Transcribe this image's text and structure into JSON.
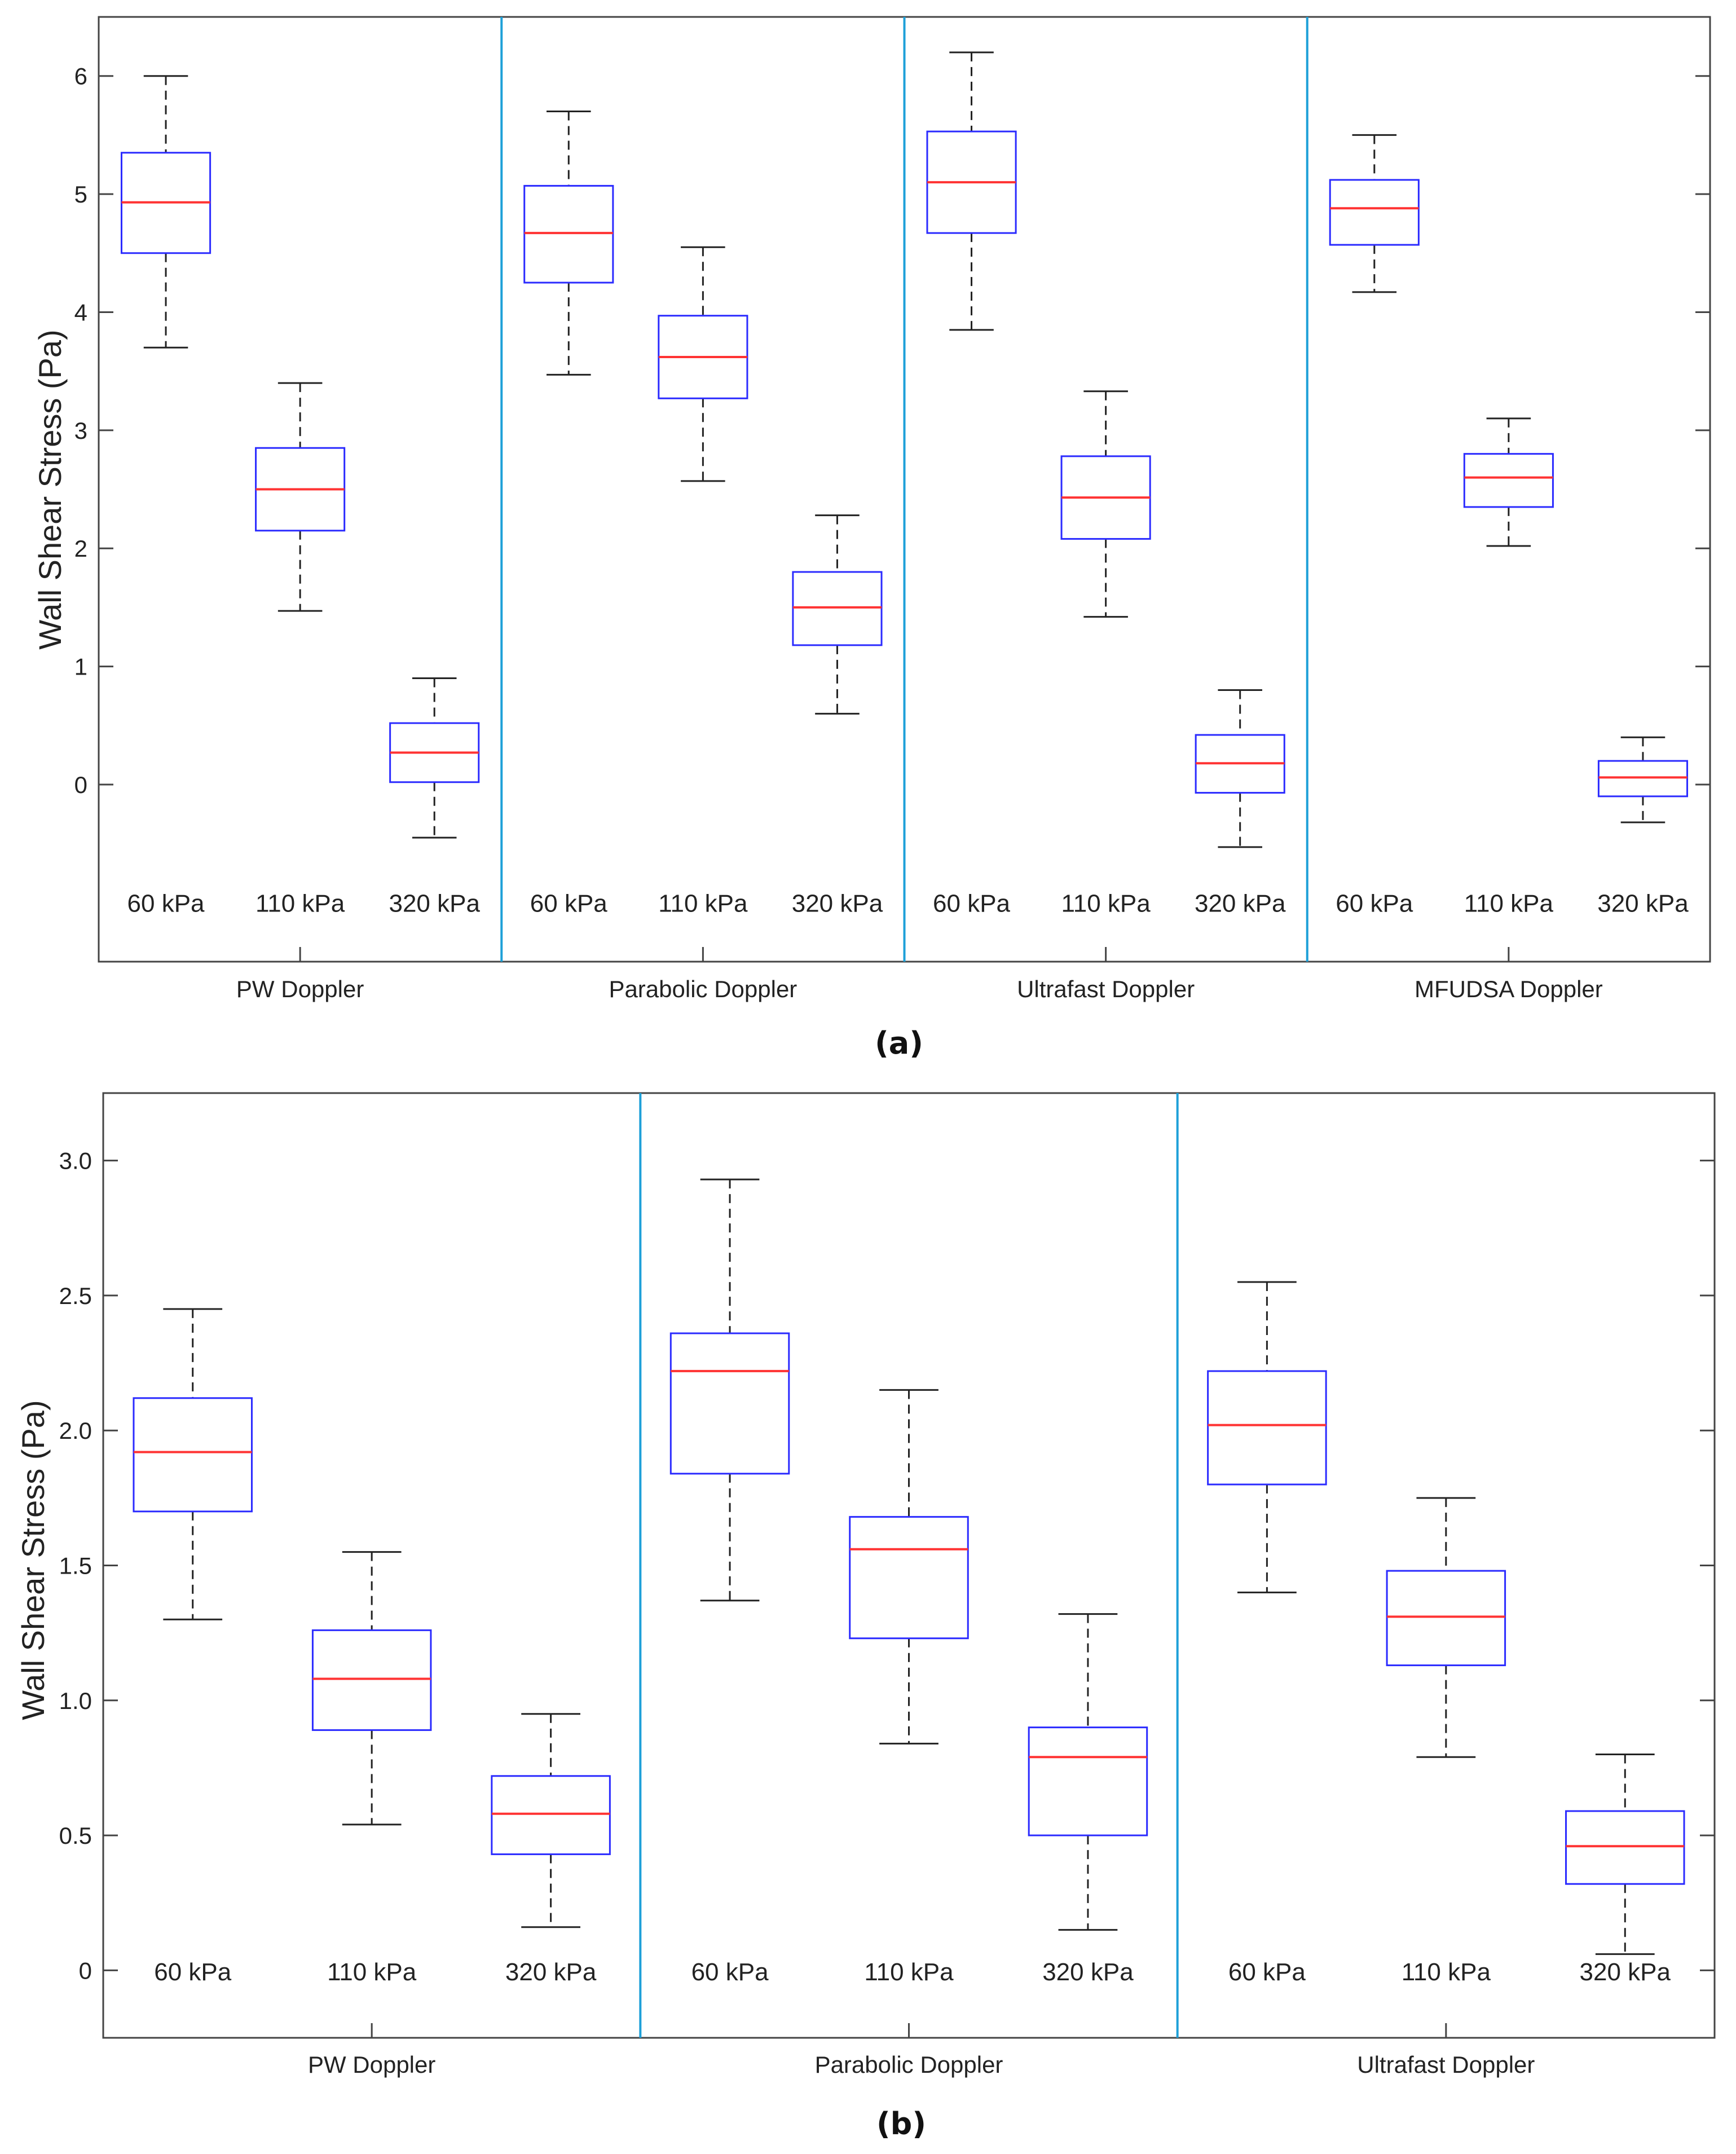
{
  "colors": {
    "box": "#2b2bff",
    "median": "#ff3333",
    "whisker": "#222222",
    "separator": "#1ea0d8",
    "axis": "#444444"
  },
  "chart_data": [
    {
      "type": "box",
      "panel_label": "(a)",
      "ylabel": "Wall Shear Stress (Pa)",
      "ylim": [
        -1.5,
        6.5
      ],
      "yticks": [
        0,
        1,
        2,
        3,
        4,
        5,
        6
      ],
      "ytick_labels": [
        "0",
        "1",
        "2",
        "3",
        "4",
        "5",
        "6"
      ],
      "grid": false,
      "groups": [
        {
          "name": "PW Doppler",
          "boxes": [
            {
              "label": "60 kPa",
              "min": 3.7,
              "q1": 4.5,
              "median": 4.93,
              "q3": 5.35,
              "max": 6.0
            },
            {
              "label": "110 kPa",
              "min": 1.47,
              "q1": 2.15,
              "median": 2.5,
              "q3": 2.85,
              "max": 3.4
            },
            {
              "label": "320 kPa",
              "min": -0.45,
              "q1": 0.02,
              "median": 0.27,
              "q3": 0.52,
              "max": 0.9
            }
          ]
        },
        {
          "name": "Parabolic Doppler",
          "boxes": [
            {
              "label": "60 kPa",
              "min": 3.47,
              "q1": 4.25,
              "median": 4.67,
              "q3": 5.07,
              "max": 5.7
            },
            {
              "label": "110 kPa",
              "min": 2.57,
              "q1": 3.27,
              "median": 3.62,
              "q3": 3.97,
              "max": 4.55
            },
            {
              "label": "320 kPa",
              "min": 0.6,
              "q1": 1.18,
              "median": 1.5,
              "q3": 1.8,
              "max": 2.28
            }
          ]
        },
        {
          "name": "Ultrafast Doppler",
          "boxes": [
            {
              "label": "60 kPa",
              "min": 3.85,
              "q1": 4.67,
              "median": 5.1,
              "q3": 5.53,
              "max": 6.2
            },
            {
              "label": "110 kPa",
              "min": 1.42,
              "q1": 2.08,
              "median": 2.43,
              "q3": 2.78,
              "max": 3.33
            },
            {
              "label": "320 kPa",
              "min": -0.53,
              "q1": -0.07,
              "median": 0.18,
              "q3": 0.42,
              "max": 0.8
            }
          ]
        },
        {
          "name": "MFUDSA Doppler",
          "boxes": [
            {
              "label": "60 kPa",
              "min": 4.17,
              "q1": 4.57,
              "median": 4.88,
              "q3": 5.12,
              "max": 5.5
            },
            {
              "label": "110 kPa",
              "min": 2.02,
              "q1": 2.35,
              "median": 2.6,
              "q3": 2.8,
              "max": 3.1
            },
            {
              "label": "320 kPa",
              "min": -0.32,
              "q1": -0.1,
              "median": 0.06,
              "q3": 0.2,
              "max": 0.4
            }
          ]
        }
      ]
    },
    {
      "type": "box",
      "panel_label": "(b)",
      "ylabel": "Wall Shear Stress (Pa)",
      "ylim": [
        -0.25,
        3.25
      ],
      "yticks": [
        0,
        0.5,
        1.0,
        1.5,
        2.0,
        2.5,
        3.0
      ],
      "ytick_labels": [
        "0",
        "0.5",
        "1.0",
        "1.5",
        "2.0",
        "2.5",
        "3.0"
      ],
      "grid": false,
      "groups": [
        {
          "name": "PW Doppler",
          "boxes": [
            {
              "label": "60 kPa",
              "min": 1.3,
              "q1": 1.7,
              "median": 1.92,
              "q3": 2.12,
              "max": 2.45
            },
            {
              "label": "110 kPa",
              "min": 0.54,
              "q1": 0.89,
              "median": 1.08,
              "q3": 1.26,
              "max": 1.55
            },
            {
              "label": "320 kPa",
              "min": 0.16,
              "q1": 0.43,
              "median": 0.58,
              "q3": 0.72,
              "max": 0.95
            }
          ]
        },
        {
          "name": "Parabolic Doppler",
          "boxes": [
            {
              "label": "60 kPa",
              "min": 1.37,
              "q1": 1.84,
              "median": 2.22,
              "q3": 2.36,
              "max": 2.93
            },
            {
              "label": "110 kPa",
              "min": 0.84,
              "q1": 1.23,
              "median": 1.56,
              "q3": 1.68,
              "max": 2.15
            },
            {
              "label": "320 kPa",
              "min": 0.15,
              "q1": 0.5,
              "median": 0.79,
              "q3": 0.9,
              "max": 1.32
            }
          ]
        },
        {
          "name": "Ultrafast Doppler",
          "boxes": [
            {
              "label": "60 kPa",
              "min": 1.4,
              "q1": 1.8,
              "median": 2.02,
              "q3": 2.22,
              "max": 2.55
            },
            {
              "label": "110 kPa",
              "min": 0.79,
              "q1": 1.13,
              "median": 1.31,
              "q3": 1.48,
              "max": 1.75
            },
            {
              "label": "320 kPa",
              "min": 0.06,
              "q1": 0.32,
              "median": 0.46,
              "q3": 0.59,
              "max": 0.8
            }
          ]
        }
      ]
    }
  ]
}
